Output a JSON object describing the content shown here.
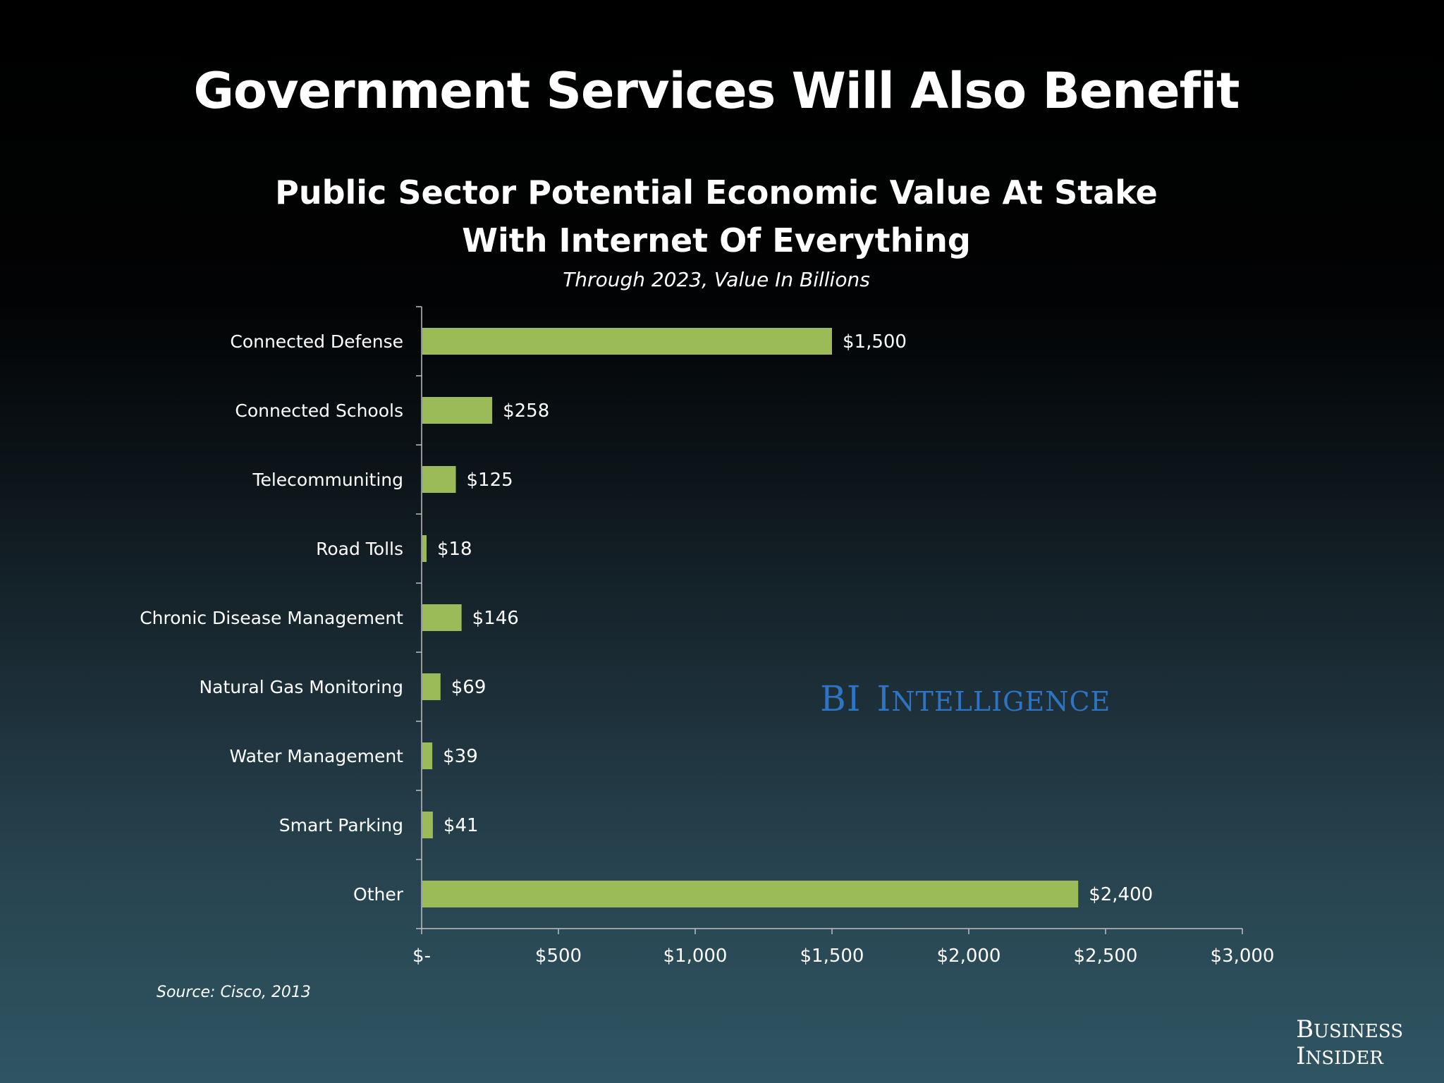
{
  "slide": {
    "title": "Government Services Will Also Benefit",
    "source": "Source: Cisco, 2013"
  },
  "branding": {
    "watermark_first": "BI",
    "watermark_second": "Intelligence",
    "logo_line1": "Business",
    "logo_line2": "Insider"
  },
  "chart_data": {
    "type": "bar",
    "orientation": "horizontal",
    "title_line1": "Public Sector Potential Economic Value At Stake",
    "title_line2": "With Internet Of Everything",
    "subtitle": "Through 2023, Value In Billions",
    "categories": [
      "Connected Defense",
      "Connected Schools",
      "Telecommuniting",
      "Road Tolls",
      "Chronic Disease Management",
      "Natural Gas Monitoring",
      "Water Management",
      "Smart Parking",
      "Other"
    ],
    "values": [
      1500,
      258,
      125,
      18,
      146,
      69,
      39,
      41,
      2400
    ],
    "value_labels": [
      "$1,500",
      "$258",
      "$125",
      "$18",
      "$146",
      "$69",
      "$39",
      "$41",
      "$2,400"
    ],
    "x_ticks": [
      0,
      500,
      1000,
      1500,
      2000,
      2500,
      3000
    ],
    "x_tick_labels": [
      "$-",
      "$500",
      "$1,000",
      "$1,500",
      "$2,000",
      "$2,500",
      "$3,000"
    ],
    "xlim": [
      0,
      3000
    ],
    "grid": false,
    "legend": "none",
    "bar_color": "#9bbb59",
    "axis_color": "#bfbfbf"
  }
}
